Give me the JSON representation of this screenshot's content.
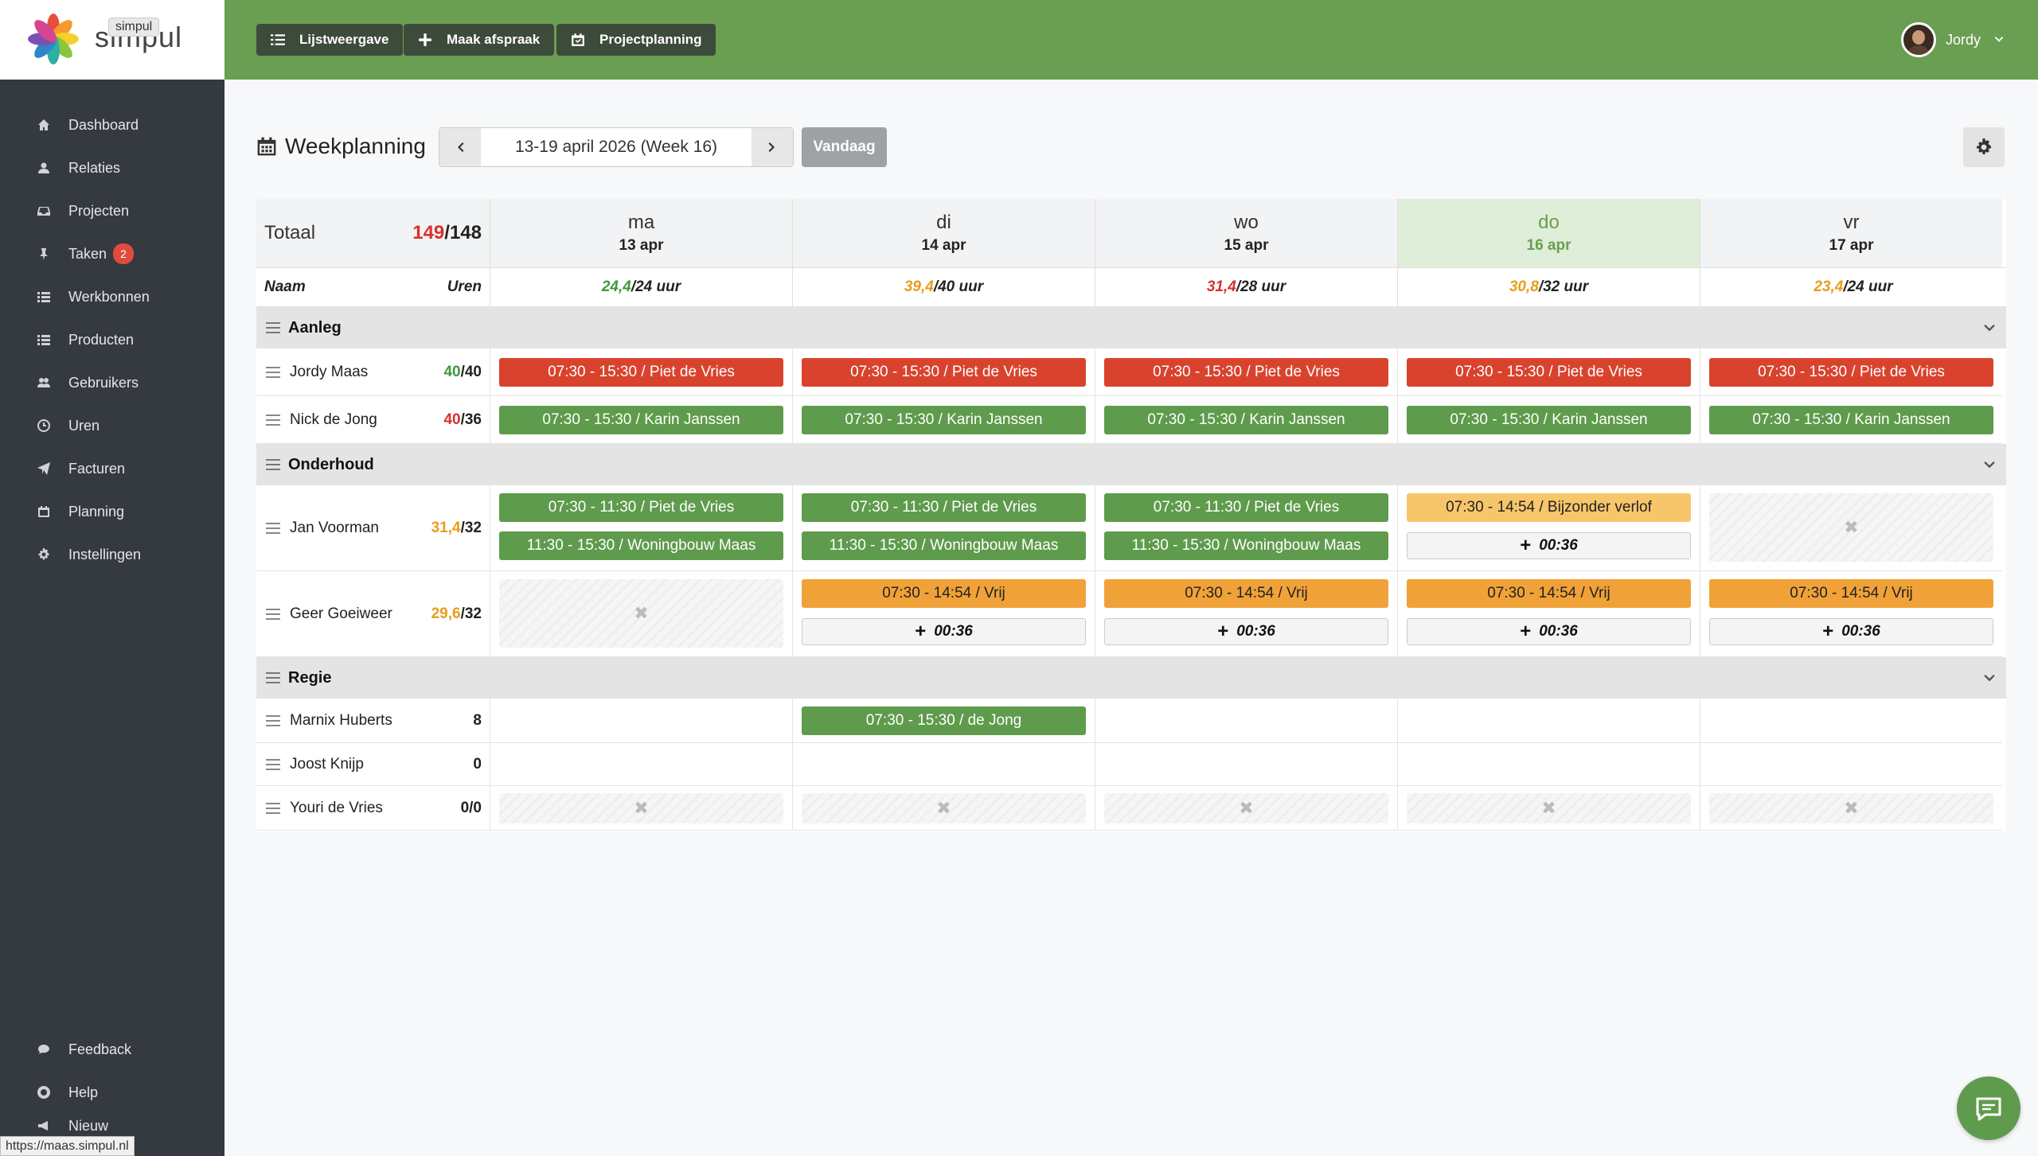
{
  "app": {
    "logo_text": "simpul",
    "logo_tooltip": "simpul"
  },
  "sidebar": {
    "items": [
      {
        "label": "Dashboard",
        "icon": "home-icon"
      },
      {
        "label": "Relaties",
        "icon": "user-icon"
      },
      {
        "label": "Projecten",
        "icon": "inbox-icon"
      },
      {
        "label": "Taken",
        "icon": "pin-icon",
        "badge": "2"
      },
      {
        "label": "Werkbonnen",
        "icon": "list-icon"
      },
      {
        "label": "Producten",
        "icon": "list-icon"
      },
      {
        "label": "Gebruikers",
        "icon": "users-icon"
      },
      {
        "label": "Uren",
        "icon": "clock-icon"
      },
      {
        "label": "Facturen",
        "icon": "send-icon"
      },
      {
        "label": "Planning",
        "icon": "calendar-icon"
      },
      {
        "label": "Instellingen",
        "icon": "gear-icon"
      }
    ],
    "bottom": [
      {
        "label": "Feedback",
        "icon": "comment-icon"
      },
      {
        "label": "Help",
        "icon": "lifebuoy-icon"
      },
      {
        "label": "Nieuw",
        "icon": "megaphone-icon"
      }
    ]
  },
  "toolbar": {
    "list_view": "Lijstweergave",
    "make_appointment": "Maak afspraak",
    "project_planning": "Projectplanning"
  },
  "user": {
    "name": "Jordy"
  },
  "page": {
    "title": "Weekplanning",
    "date_range": "13-19 april 2026 (Week 16)",
    "today_button": "Vandaag"
  },
  "grid": {
    "totaal_label": "Totaal",
    "totaal_used": "149",
    "totaal_cap": "/148",
    "col_name": "Naam",
    "col_hours": "Uren",
    "days": [
      {
        "name": "ma",
        "date": "13 apr",
        "used": "24,4",
        "cap": "/24 uur",
        "used_color": "green",
        "today": false
      },
      {
        "name": "di",
        "date": "14 apr",
        "used": "39,4",
        "cap": "/40 uur",
        "used_color": "orange",
        "today": false
      },
      {
        "name": "wo",
        "date": "15 apr",
        "used": "31,4",
        "cap": "/28 uur",
        "used_color": "red",
        "today": false
      },
      {
        "name": "do",
        "date": "16 apr",
        "used": "30,8",
        "cap": "/32 uur",
        "used_color": "orange",
        "today": true
      },
      {
        "name": "vr",
        "date": "17 apr",
        "used": "23,4",
        "cap": "/24 uur",
        "used_color": "orange",
        "today": false
      }
    ],
    "groups": [
      {
        "name": "Aanleg"
      },
      {
        "name": "Onderhoud"
      },
      {
        "name": "Regie"
      }
    ],
    "employees": [
      {
        "name": "Jordy Maas",
        "used": "40",
        "cap": "/40",
        "used_color": "green"
      },
      {
        "name": "Nick de Jong",
        "used": "40",
        "cap": "/36",
        "used_color": "red"
      },
      {
        "name": "Jan Voorman",
        "used": "31,4",
        "cap": "/32",
        "used_color": "orange"
      },
      {
        "name": "Geer Goeiweer",
        "used": "29,6",
        "cap": "/32",
        "used_color": "orange"
      },
      {
        "name": "Marnix Huberts",
        "used": "",
        "cap": "8",
        "used_color": "none"
      },
      {
        "name": "Joost Knijp",
        "used": "",
        "cap": "0",
        "used_color": "none"
      },
      {
        "name": "Youri de Vries",
        "used": "",
        "cap": "0/0",
        "used_color": "none"
      }
    ],
    "appointments": {
      "jordy": "07:30 - 15:30 / Piet de Vries",
      "nick": "07:30 - 15:30 / Karin Janssen",
      "jan_1": "07:30 - 11:30 / Piet de Vries",
      "jan_2": "11:30 - 15:30 / Woningbouw Maas",
      "jan_do": "07:30 - 14:54 / Bijzonder verlof",
      "geer": "07:30 - 14:54 / Vrij",
      "plus": "00:36",
      "marnix_di": "07:30 - 15:30 /  de Jong"
    }
  },
  "status_url": "https://maas.simpul.nl"
}
